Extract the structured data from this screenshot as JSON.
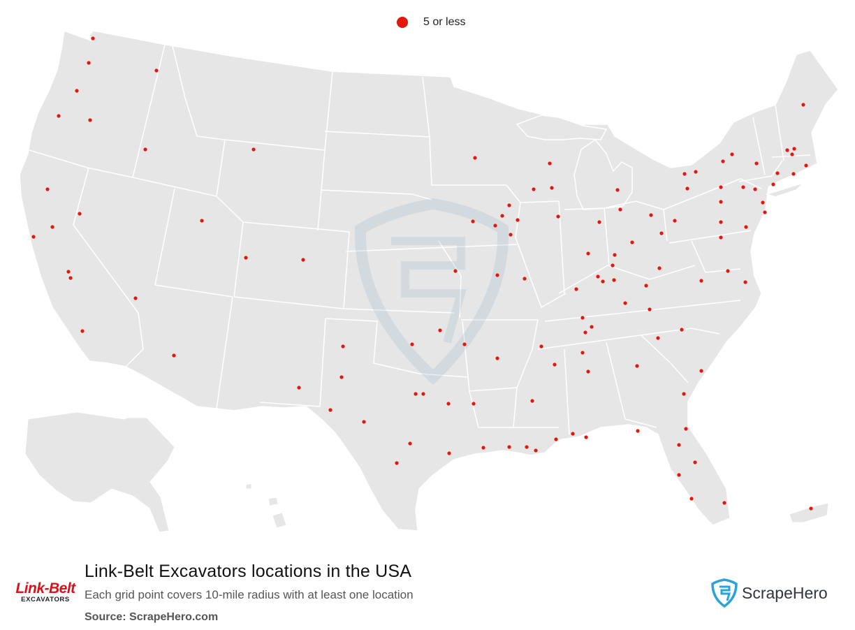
{
  "legend": {
    "label": "5 or less",
    "color": "#e3170a"
  },
  "title": "Link-Belt Excavators locations in the USA",
  "subtitle": "Each grid point covers 10-mile radius with at least one location",
  "source": "Source: ScrapeHero.com",
  "brand": {
    "line1": "Link-Belt",
    "line2": "EXCAVATORS"
  },
  "scrapehero": {
    "name": "ScrapeHero",
    "color": "#2aa3d8"
  },
  "colors": {
    "land": "#e6e6e6",
    "border": "#ffffff",
    "marker": "#e3170a"
  },
  "icons": [
    "shield-s-icon",
    "legend-dot-icon"
  ]
}
